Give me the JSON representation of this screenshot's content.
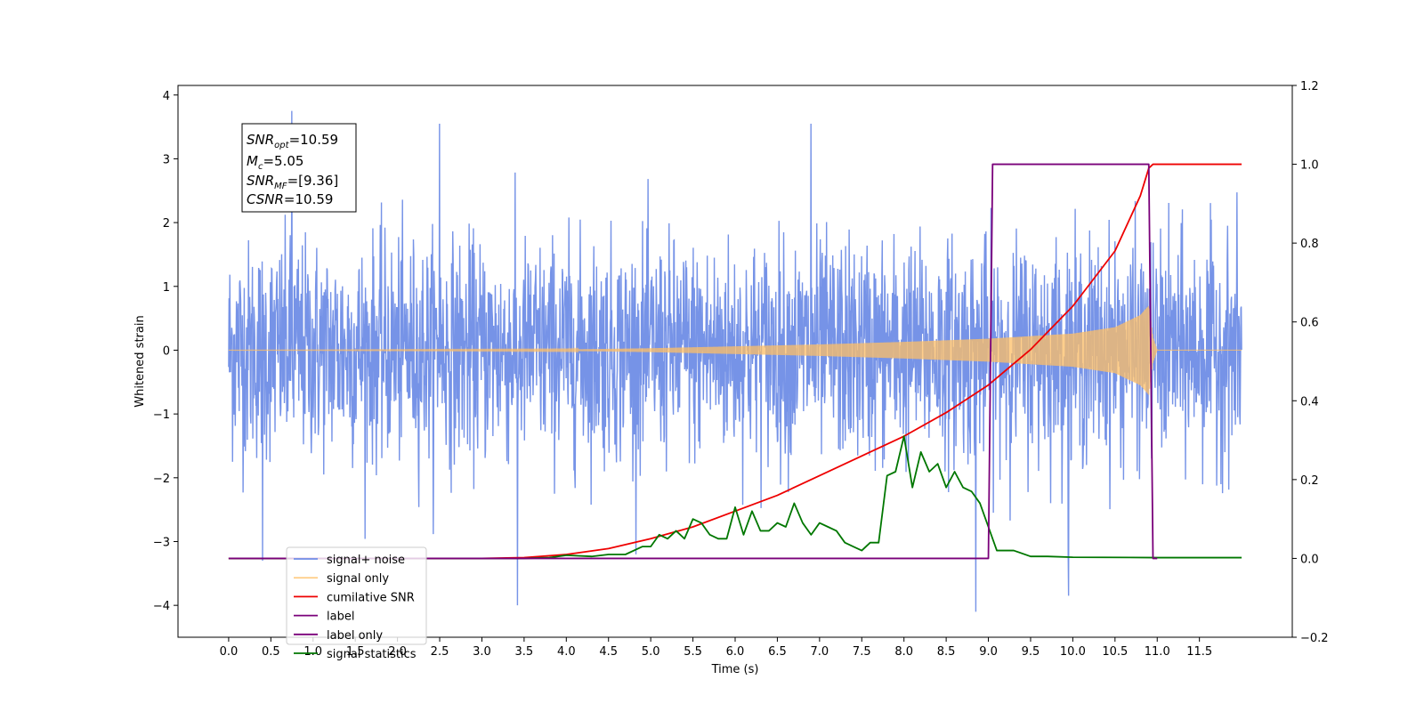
{
  "chart_data": {
    "type": "line",
    "title": "",
    "xlabel": "Time (s)",
    "ylabel_left": "Whitened strain",
    "ylabel_right": "",
    "xlim": [
      -0.6,
      12.6
    ],
    "ylim_left": [
      -4.5,
      4.15
    ],
    "ylim_right": [
      -0.2,
      1.2
    ],
    "x_ticks": [
      0.0,
      0.5,
      1.0,
      1.5,
      2.0,
      2.5,
      3.0,
      3.5,
      4.0,
      4.5,
      5.0,
      5.5,
      6.0,
      6.5,
      7.0,
      7.5,
      8.0,
      8.5,
      9.0,
      9.5,
      10.0,
      10.5,
      11.0,
      11.5
    ],
    "x_tick_labels": [
      "0.0",
      "0.5",
      "1.0",
      "1.5",
      "2.0",
      "2.5",
      "3.0",
      "3.5",
      "4.0",
      "4.5",
      "5.0",
      "5.5",
      "6.0",
      "6.5",
      "7.0",
      "7.5",
      "8.0",
      "8.5",
      "9.0",
      "9.5",
      "10.0",
      "10.5",
      "11.0",
      "11.5"
    ],
    "y_left_ticks": [
      -4,
      -3,
      -2,
      -1,
      0,
      1,
      2,
      3,
      4
    ],
    "y_left_tick_labels": [
      "−4",
      "−3",
      "−2",
      "−1",
      "0",
      "1",
      "2",
      "3",
      "4"
    ],
    "y_right_ticks": [
      -0.2,
      0.0,
      0.2,
      0.4,
      0.6,
      0.8,
      1.0,
      1.2
    ],
    "y_right_tick_labels": [
      "−0.2",
      "0.0",
      "0.2",
      "0.4",
      "0.6",
      "0.8",
      "1.0",
      "1.2"
    ],
    "legend_position": "lower-left",
    "legend": [
      {
        "label": "signal+ noise",
        "color": "#6f8de6"
      },
      {
        "label": "signal only",
        "color": "#ffbf66"
      },
      {
        "label": "cumilative SNR",
        "color": "#ee0000"
      },
      {
        "label": "label",
        "color": "#7a007a"
      },
      {
        "label": "label only",
        "color": "#7a007a"
      },
      {
        "label": "signal statistics",
        "color": "#007700"
      }
    ],
    "annotations": {
      "snr_opt": {
        "name": "SNR",
        "sub": "opt",
        "value": "=10.59"
      },
      "mc": {
        "name": "M",
        "sub": "c",
        "value": "=5.05"
      },
      "snr_mf": {
        "name": "SNR",
        "sub": "MF",
        "value": "=[9.36]"
      },
      "csnr": {
        "name": "CSNR",
        "sub": "",
        "value": "=10.59"
      }
    },
    "series": [
      {
        "name": "signal+ noise",
        "axis": "left",
        "color": "#6f8de6",
        "x_range": [
          0.0,
          12.0
        ],
        "noise_std": 0.85,
        "noted_spikes": [
          [
            0.75,
            3.75
          ],
          [
            2.5,
            3.55
          ],
          [
            6.9,
            3.55
          ],
          [
            3.42,
            -4.0
          ],
          [
            8.85,
            -4.1
          ],
          [
            9.95,
            -3.85
          ],
          [
            0.4,
            -3.3
          ]
        ]
      },
      {
        "name": "signal only",
        "axis": "left",
        "color": "#ffbf66",
        "envelope": {
          "x": [
            0.0,
            4.0,
            5.0,
            6.0,
            7.0,
            8.0,
            9.0,
            10.0,
            10.5,
            10.8,
            10.9,
            10.95,
            11.0,
            12.0
          ],
          "amplitude": [
            0.0,
            0.01,
            0.03,
            0.06,
            0.09,
            0.13,
            0.18,
            0.26,
            0.36,
            0.55,
            0.7,
            0.2,
            0.0,
            0.0
          ]
        }
      },
      {
        "name": "cumilative SNR",
        "axis": "right",
        "color": "#ee0000",
        "x": [
          0.0,
          3.0,
          3.5,
          4.0,
          4.5,
          5.0,
          5.5,
          6.0,
          6.5,
          7.0,
          7.5,
          8.0,
          8.5,
          9.0,
          9.5,
          10.0,
          10.5,
          10.8,
          10.9,
          10.95,
          11.0,
          12.0
        ],
        "y": [
          0.0,
          0.0,
          0.002,
          0.01,
          0.025,
          0.05,
          0.08,
          0.12,
          0.16,
          0.21,
          0.26,
          0.31,
          0.37,
          0.44,
          0.53,
          0.64,
          0.78,
          0.92,
          0.99,
          1.0,
          1.0,
          1.0
        ]
      },
      {
        "name": "label",
        "axis": "right",
        "color": "#7a007a",
        "x": [
          0.0,
          9.0,
          9.05,
          10.9,
          10.95,
          11.0
        ],
        "y": [
          0.0,
          0.0,
          1.0,
          1.0,
          0.0,
          0.0
        ]
      },
      {
        "name": "signal statistics",
        "axis": "right",
        "color": "#007700",
        "x": [
          0.0,
          3.5,
          3.8,
          4.0,
          4.3,
          4.5,
          4.7,
          4.9,
          5.0,
          5.1,
          5.2,
          5.3,
          5.4,
          5.5,
          5.6,
          5.7,
          5.8,
          5.9,
          6.0,
          6.1,
          6.2,
          6.3,
          6.4,
          6.5,
          6.6,
          6.7,
          6.8,
          6.9,
          7.0,
          7.1,
          7.2,
          7.3,
          7.4,
          7.5,
          7.6,
          7.7,
          7.8,
          7.9,
          8.0,
          8.1,
          8.2,
          8.3,
          8.4,
          8.5,
          8.6,
          8.7,
          8.8,
          8.9,
          9.0,
          9.1,
          9.2,
          9.3,
          9.5,
          9.7,
          10.0,
          11.0,
          12.0
        ],
        "y": [
          0.0,
          0.0,
          0.002,
          0.008,
          0.005,
          0.01,
          0.01,
          0.03,
          0.03,
          0.06,
          0.05,
          0.07,
          0.05,
          0.1,
          0.09,
          0.06,
          0.05,
          0.05,
          0.13,
          0.06,
          0.12,
          0.07,
          0.07,
          0.09,
          0.08,
          0.14,
          0.09,
          0.06,
          0.09,
          0.08,
          0.07,
          0.04,
          0.03,
          0.02,
          0.04,
          0.04,
          0.21,
          0.22,
          0.31,
          0.18,
          0.27,
          0.22,
          0.24,
          0.18,
          0.22,
          0.18,
          0.17,
          0.14,
          0.08,
          0.02,
          0.02,
          0.02,
          0.005,
          0.005,
          0.003,
          0.002,
          0.002
        ]
      }
    ]
  }
}
